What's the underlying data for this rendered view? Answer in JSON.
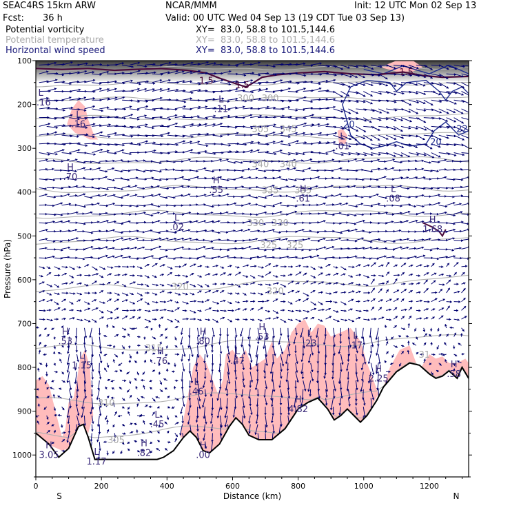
{
  "header": {
    "model": "SEAC4RS 15km ARW",
    "org": "NCAR/MMM",
    "init": "Init: 12 UTC Mon 02 Sep 13",
    "fcst_label": "Fcst:",
    "fcst_value": "36 h",
    "valid": "Valid: 00 UTC Wed 04 Sep 13 (19 CDT Tue 03 Sep 13)",
    "fields": [
      {
        "name": "Potential vorticity",
        "xy": "XY=  83.0, 58.8 to 101.5,144.6"
      },
      {
        "name": "Potential temperature",
        "xy": "XY=  83.0, 58.8 to 101.5,144.6"
      },
      {
        "name": "Horizontal wind speed",
        "xy": "XY=  83.0, 58.8 to 101.5,144.6"
      }
    ]
  },
  "colors": {
    "pv_shade": "#ffbcbc",
    "pv_line": "#4a0a3a",
    "theta": "#b0b0b0",
    "wind": "#00006e",
    "wind_contour": "#1f2c8f",
    "terrain": "#000000"
  },
  "chart_data": {
    "type": "cross-section",
    "xlabel": "Distance (km)",
    "ylabel": "Pressure (hPa)",
    "xlim": [
      0,
      1320
    ],
    "ylim": [
      1050,
      100
    ],
    "xticks": [
      0,
      200,
      400,
      600,
      800,
      1000,
      1200
    ],
    "yticks": [
      100,
      200,
      300,
      400,
      500,
      600,
      700,
      800,
      900,
      1000
    ],
    "end_labels": {
      "left": "S",
      "right": "N"
    },
    "terrain": [
      [
        0,
        950
      ],
      [
        40,
        975
      ],
      [
        70,
        1005
      ],
      [
        100,
        985
      ],
      [
        130,
        935
      ],
      [
        145,
        930
      ],
      [
        160,
        960
      ],
      [
        180,
        1010
      ],
      [
        220,
        1010
      ],
      [
        370,
        1010
      ],
      [
        390,
        1005
      ],
      [
        420,
        990
      ],
      [
        450,
        960
      ],
      [
        470,
        945
      ],
      [
        490,
        960
      ],
      [
        510,
        990
      ],
      [
        530,
        995
      ],
      [
        560,
        975
      ],
      [
        590,
        935
      ],
      [
        610,
        915
      ],
      [
        630,
        930
      ],
      [
        650,
        955
      ],
      [
        680,
        965
      ],
      [
        720,
        965
      ],
      [
        760,
        940
      ],
      [
        800,
        895
      ],
      [
        830,
        880
      ],
      [
        860,
        870
      ],
      [
        890,
        895
      ],
      [
        910,
        920
      ],
      [
        930,
        910
      ],
      [
        950,
        895
      ],
      [
        970,
        910
      ],
      [
        990,
        925
      ],
      [
        1010,
        910
      ],
      [
        1040,
        875
      ],
      [
        1060,
        845
      ],
      [
        1100,
        810
      ],
      [
        1140,
        790
      ],
      [
        1170,
        795
      ],
      [
        1200,
        815
      ],
      [
        1220,
        825
      ],
      [
        1240,
        820
      ],
      [
        1260,
        808
      ],
      [
        1285,
        825
      ],
      [
        1300,
        800
      ],
      [
        1320,
        825
      ]
    ],
    "pv_highs": [
      {
        "label": "H",
        "value": "3.05",
        "x": 40,
        "p": 985
      },
      {
        "label": "H",
        "value": ".70",
        "x": 105,
        "p": 350
      },
      {
        "label": "H",
        "value": ".53",
        "x": 90,
        "p": 725
      },
      {
        "label": "H",
        "value": ".76",
        "x": 380,
        "p": 770
      },
      {
        "label": "H",
        "value": ".82",
        "x": 330,
        "p": 980
      },
      {
        "label": "H",
        "value": ".55",
        "x": 550,
        "p": 380
      },
      {
        "label": "H",
        "value": ".80",
        "x": 510,
        "p": 725
      },
      {
        "label": "H",
        "value": ".00",
        "x": 510,
        "p": 985
      },
      {
        "label": "H",
        "value": ".53",
        "x": 690,
        "p": 715
      },
      {
        "label": "H",
        "value": ".61",
        "x": 815,
        "p": 400
      },
      {
        "label": "H",
        "value": "4.82",
        "x": 800,
        "p": 880
      },
      {
        "label": "H",
        "value": "2.25",
        "x": 1045,
        "p": 810
      },
      {
        "label": "H",
        "value": "1.68",
        "x": 1210,
        "p": 470
      },
      {
        "label": "H",
        "value": ".58",
        "x": 1275,
        "p": 800
      }
    ],
    "pv_lows": [
      {
        "label": "L",
        "value": "5.16",
        "x": 15,
        "p": 180
      },
      {
        "label": "L",
        "value": ".16",
        "x": 130,
        "p": 230
      },
      {
        "label": "L",
        "value": "1.15",
        "x": 140,
        "p": 780
      },
      {
        "label": "L",
        "value": ".45",
        "x": 370,
        "p": 915
      },
      {
        "label": "L",
        "value": "1.17",
        "x": 185,
        "p": 1000
      },
      {
        "label": "L",
        "value": ".02",
        "x": 430,
        "p": 465
      },
      {
        "label": "L",
        "value": ".46",
        "x": 490,
        "p": 840
      },
      {
        "label": "L",
        "value": ".11",
        "x": 565,
        "p": 195
      },
      {
        "label": "L",
        "value": ".47",
        "x": 615,
        "p": 770
      },
      {
        "label": "L",
        "value": ".23",
        "x": 835,
        "p": 730
      },
      {
        "label": "L",
        "value": ".17",
        "x": 975,
        "p": 735
      },
      {
        "label": "L",
        "value": ".01",
        "x": 935,
        "p": 280
      },
      {
        "label": "L",
        "value": ".08",
        "x": 1090,
        "p": 400
      }
    ],
    "pv_contour_labels": [
      {
        "text": "1.5",
        "x": 520,
        "p": 145
      },
      {
        "text": "1.5",
        "x": 630,
        "p": 155
      },
      {
        "text": "1.5",
        "x": 1130,
        "p": 125
      }
    ],
    "theta_labels": [
      {
        "text": "300",
        "x": 640,
        "p": 185
      },
      {
        "text": "300",
        "x": 715,
        "p": 185
      },
      {
        "text": "305",
        "x": 685,
        "p": 255
      },
      {
        "text": "345",
        "x": 770,
        "p": 255
      },
      {
        "text": "340",
        "x": 685,
        "p": 335
      },
      {
        "text": "340",
        "x": 770,
        "p": 335
      },
      {
        "text": "335",
        "x": 715,
        "p": 395
      },
      {
        "text": "335",
        "x": 815,
        "p": 395
      },
      {
        "text": "330",
        "x": 670,
        "p": 470
      },
      {
        "text": "330",
        "x": 745,
        "p": 470
      },
      {
        "text": "325",
        "x": 710,
        "p": 520
      },
      {
        "text": "325",
        "x": 790,
        "p": 520
      },
      {
        "text": "320",
        "x": 440,
        "p": 615
      },
      {
        "text": "320",
        "x": 730,
        "p": 625
      },
      {
        "text": "315",
        "x": 360,
        "p": 755
      },
      {
        "text": "310",
        "x": 215,
        "p": 880
      },
      {
        "text": "305",
        "x": 245,
        "p": 965
      },
      {
        "text": "31",
        "x": 1185,
        "p": 770
      }
    ],
    "wind_contour_labels": [
      {
        "text": "20",
        "x": 955,
        "p": 245
      },
      {
        "text": "20",
        "x": 1220,
        "p": 285
      },
      {
        "text": "22",
        "x": 1300,
        "p": 255
      }
    ],
    "theta_levels_hPa_at_left": [
      120,
      155,
      190,
      232,
      275,
      330,
      395,
      452,
      512,
      625,
      760,
      880,
      955
    ]
  }
}
